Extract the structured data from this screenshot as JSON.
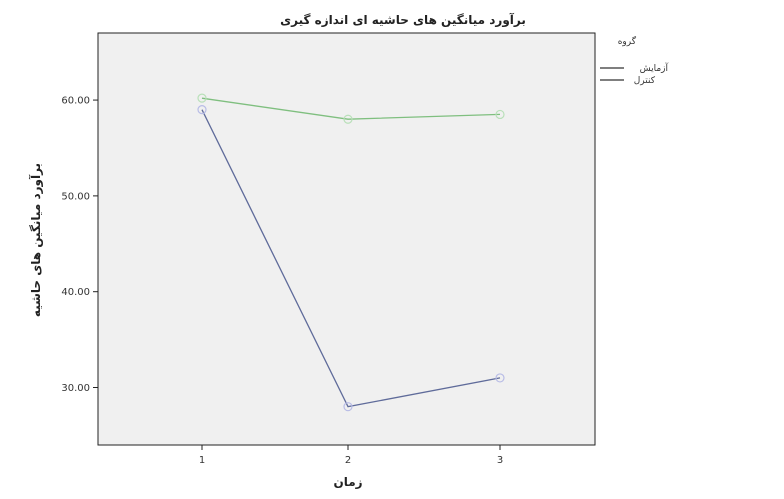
{
  "chart_data": {
    "type": "line",
    "title": "برآورد میانگین های حاشیه ای اندازه گیری",
    "xlabel": "زمان",
    "ylabel": "برآورد میانگین های حاشیه",
    "categories": [
      "1",
      "2",
      "3"
    ],
    "y_ticks": [
      "30.00",
      "40.00",
      "50.00",
      "60.00"
    ],
    "ylim": [
      24,
      67
    ],
    "grid": false,
    "legend": {
      "title": "گروه",
      "position": "right",
      "entries": [
        "آزمایش",
        "کنترل"
      ]
    },
    "series": [
      {
        "name": "آزمایش",
        "values": [
          59.0,
          28.0,
          31.0
        ],
        "color": "#5f6b9a",
        "marker_color": "#b8bce6"
      },
      {
        "name": "کنترل",
        "values": [
          60.2,
          58.0,
          58.5
        ],
        "color": "#7fbf7f",
        "marker_color": "#b9e0b9"
      }
    ]
  }
}
